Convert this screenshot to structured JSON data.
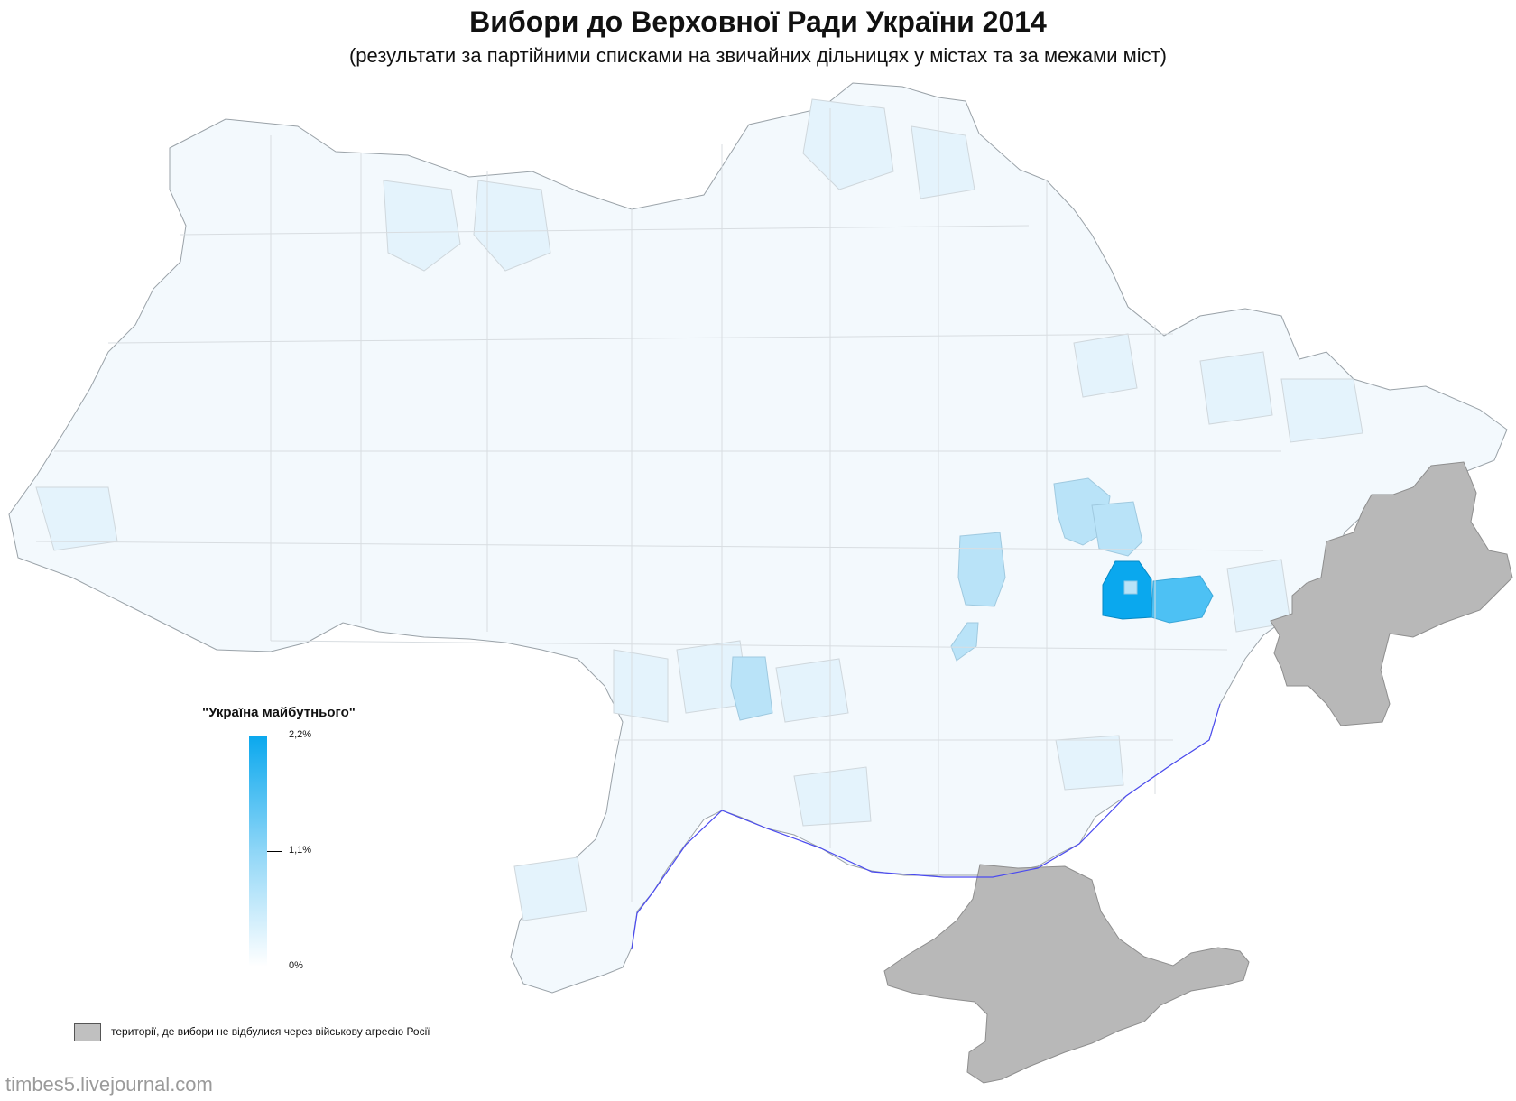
{
  "title": "Вибори до Верховної Ради України 2014",
  "subtitle": "(результати за партійними списками на звичайних дільницях у містах та за межами міст)",
  "legend": {
    "party": "\"Україна майбутнього\"",
    "max_label": "2,2%",
    "mid_label": "1,1%",
    "min_label": "0%",
    "scale_colors": {
      "max": "#0aa8ee",
      "mid": "#8fd6f7",
      "min": "#ffffff"
    },
    "occupied_label": "території, де вибори не відбулися через військову агресію Росії",
    "occupied_color": "#c0c0c0"
  },
  "credit": "timbes5.livejournal.com",
  "map_colors": {
    "base": "#f3f9fd",
    "light": "#e4f3fc",
    "mid": "#b9e3f8",
    "strong": "#4dc1f4",
    "max": "#0aa8ee",
    "occupied": "#b8b8b8",
    "border": "#c9cdd1",
    "sea_line": "#4a4af0"
  }
}
